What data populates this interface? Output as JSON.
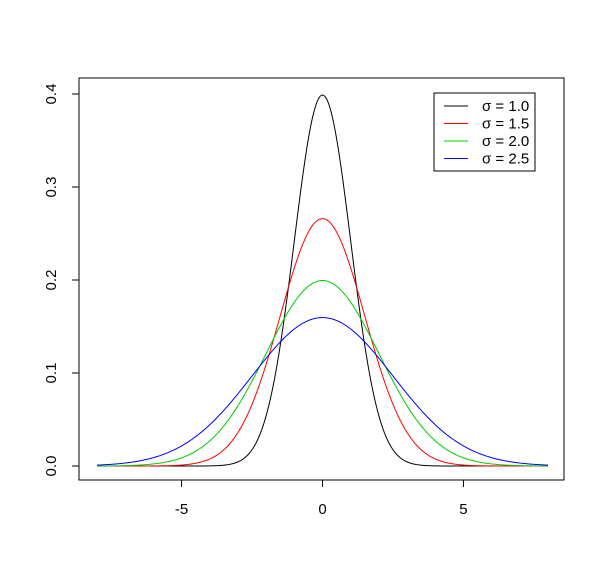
{
  "chart_data": {
    "type": "line",
    "title": "",
    "xlabel": "",
    "ylabel": "",
    "xlim": [
      -8,
      8
    ],
    "ylim": [
      0,
      0.4
    ],
    "x_ticks": [
      -5,
      0,
      5
    ],
    "x_tick_labels": [
      "-5",
      "0",
      "5"
    ],
    "y_ticks": [
      0.0,
      0.1,
      0.2,
      0.3,
      0.4
    ],
    "y_tick_labels": [
      "0.0",
      "0.1",
      "0.2",
      "0.3",
      "0.4"
    ],
    "grid": false,
    "legend_position": "top-right",
    "series": [
      {
        "name": "σ = 1.0",
        "sigma": 1.0,
        "color": "#000000"
      },
      {
        "name": "σ = 1.5",
        "sigma": 1.5,
        "color": "#ff0000"
      },
      {
        "name": "σ = 2.0",
        "sigma": 2.0,
        "color": "#00cd00"
      },
      {
        "name": "σ = 2.5",
        "sigma": 2.5,
        "color": "#0000ff"
      }
    ]
  }
}
